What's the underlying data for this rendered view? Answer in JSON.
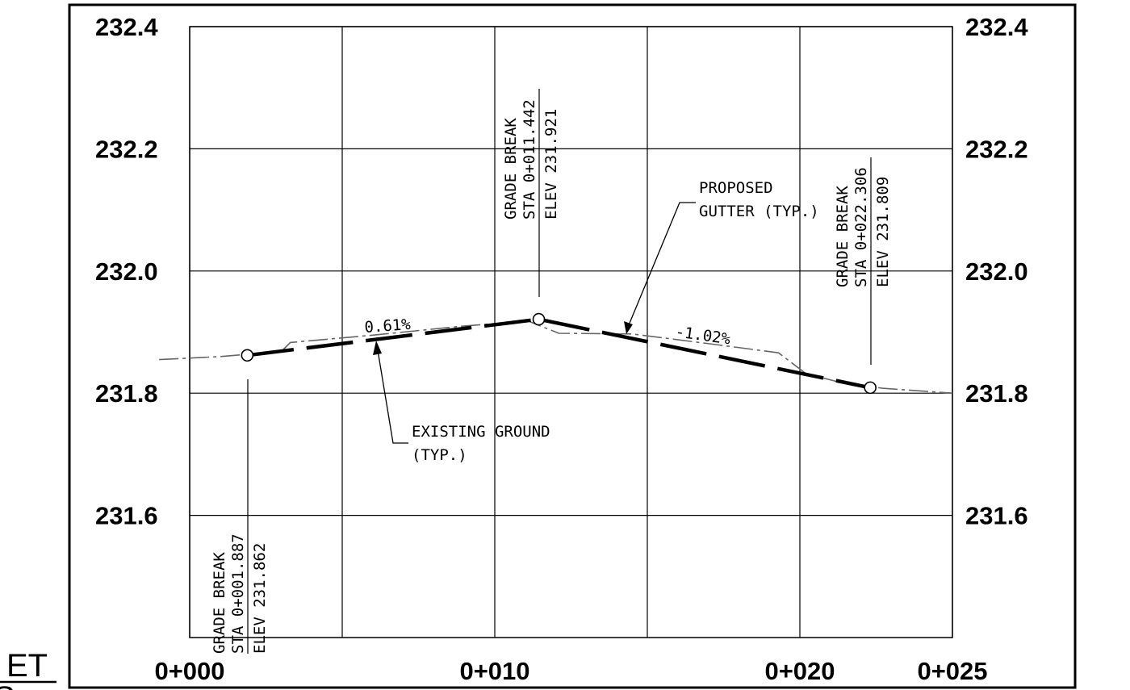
{
  "drawing": {
    "kind": "profile",
    "margin_text": {
      "line1": "ET",
      "line2": "S"
    },
    "station_min": 0,
    "station_max": 25,
    "elev_min": 231.4,
    "elev_max": 232.4
  },
  "elevation_labels": [
    "232.4",
    "232.2",
    "232.0",
    "231.8",
    "231.6"
  ],
  "elevation_values": [
    232.4,
    232.2,
    232.0,
    231.8,
    231.6
  ],
  "station_labels": [
    "0+000",
    "0+010",
    "0+020",
    "0+025"
  ],
  "station_values": [
    0,
    10,
    20,
    25
  ],
  "grid": {
    "stations": [
      0,
      5,
      10,
      15,
      20,
      25
    ],
    "elevations": [
      231.6,
      231.8,
      232.0,
      232.2,
      232.4
    ]
  },
  "proposed_gutter": {
    "points": [
      {
        "sta": 1.887,
        "elev": 231.862
      },
      {
        "sta": 11.442,
        "elev": 231.921
      },
      {
        "sta": 22.306,
        "elev": 231.809
      }
    ],
    "color": "#000000"
  },
  "existing_ground": {
    "points": [
      {
        "sta": -1.0,
        "elev": 231.855
      },
      {
        "sta": 1.0,
        "elev": 231.86
      },
      {
        "sta": 3.0,
        "elev": 231.868
      },
      {
        "sta": 3.3,
        "elev": 231.883
      },
      {
        "sta": 6.0,
        "elev": 231.895
      },
      {
        "sta": 9.0,
        "elev": 231.91
      },
      {
        "sta": 11.1,
        "elev": 231.918
      },
      {
        "sta": 12.1,
        "elev": 231.898
      },
      {
        "sta": 14.5,
        "elev": 231.897
      },
      {
        "sta": 17.5,
        "elev": 231.878
      },
      {
        "sta": 19.3,
        "elev": 231.866
      },
      {
        "sta": 20.2,
        "elev": 231.832
      },
      {
        "sta": 21.3,
        "elev": 231.818
      },
      {
        "sta": 22.7,
        "elev": 231.808
      },
      {
        "sta": 25.0,
        "elev": 231.8
      }
    ],
    "color": "#666666"
  },
  "grade_breaks": [
    {
      "title": "GRADE BREAK",
      "sta_text": "STA 0+001.887",
      "elev_text": "ELEV 231.862"
    },
    {
      "title": "GRADE BREAK",
      "sta_text": "STA 0+011.442",
      "elev_text": "ELEV 231.921"
    },
    {
      "title": "GRADE BREAK",
      "sta_text": "STA 0+022.306",
      "elev_text": "ELEV 231.809"
    }
  ],
  "slopes": [
    {
      "text": "0.61%"
    },
    {
      "text": "-1.02%"
    }
  ],
  "callouts": {
    "gutter": {
      "line1": "PROPOSED",
      "line2": "GUTTER (TYP.)"
    },
    "ground": {
      "line1": "EXISTING GROUND",
      "line2": "(TYP.)"
    }
  }
}
